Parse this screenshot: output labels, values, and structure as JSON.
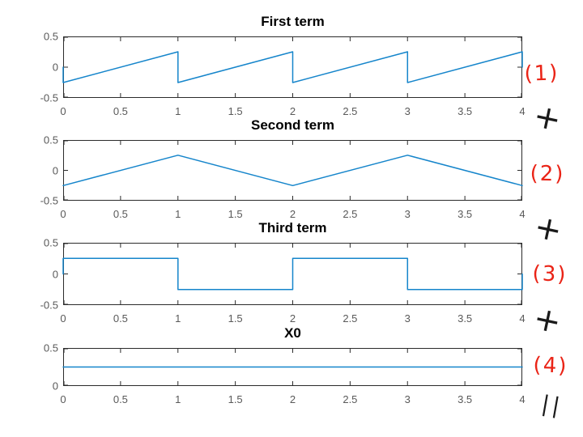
{
  "figure": {
    "kind": "matlab-style stacked subplots with handwritten annotations",
    "background": "#ffffff"
  },
  "colors": {
    "line": "#1585cb",
    "axis": "#2b2b2b",
    "tick_label": "#595959",
    "title": "#000000",
    "ink_red": "#ea2417",
    "ink_black": "#1a1a1a"
  },
  "chart_data": [
    {
      "type": "line",
      "title": "First term",
      "xlim": [
        0,
        4
      ],
      "ylim": [
        -0.5,
        0.5
      ],
      "x_ticks": [
        0,
        0.5,
        1,
        1.5,
        2,
        2.5,
        3,
        3.5,
        4
      ],
      "x_tick_labels": [
        "0",
        "0.5",
        "1",
        "1.5",
        "2",
        "2.5",
        "3",
        "3.5",
        "4"
      ],
      "y_ticks": [
        0.5,
        0,
        -0.5
      ],
      "y_tick_labels": [
        "0.5",
        "0",
        "-0.5"
      ],
      "grid": false,
      "legend": null,
      "points": [
        [
          0,
          0
        ],
        [
          0,
          -0.25
        ],
        [
          1,
          0.25
        ],
        [
          1,
          -0.25
        ],
        [
          2,
          0.25
        ],
        [
          2,
          -0.25
        ],
        [
          3,
          0.25
        ],
        [
          3,
          -0.25
        ],
        [
          4,
          0.25
        ],
        [
          4,
          0
        ]
      ]
    },
    {
      "type": "line",
      "title": "Second term",
      "xlim": [
        0,
        4
      ],
      "ylim": [
        -0.5,
        0.5
      ],
      "x_ticks": [
        0,
        0.5,
        1,
        1.5,
        2,
        2.5,
        3,
        3.5,
        4
      ],
      "x_tick_labels": [
        "0",
        "0.5",
        "1",
        "1.5",
        "2",
        "2.5",
        "3",
        "3.5",
        "4"
      ],
      "y_ticks": [
        0.5,
        0,
        -0.5
      ],
      "y_tick_labels": [
        "0.5",
        "0",
        "-0.5"
      ],
      "grid": false,
      "legend": null,
      "points": [
        [
          0,
          -0.25
        ],
        [
          1,
          0.25
        ],
        [
          2,
          -0.25
        ],
        [
          3,
          0.25
        ],
        [
          4,
          -0.25
        ]
      ]
    },
    {
      "type": "line",
      "title": "Third term",
      "xlim": [
        0,
        4
      ],
      "ylim": [
        -0.5,
        0.5
      ],
      "x_ticks": [
        0,
        0.5,
        1,
        1.5,
        2,
        2.5,
        3,
        3.5,
        4
      ],
      "x_tick_labels": [
        "0",
        "0.5",
        "1",
        "1.5",
        "2",
        "2.5",
        "3",
        "3.5",
        "4"
      ],
      "y_ticks": [
        0.5,
        0,
        -0.5
      ],
      "y_tick_labels": [
        "0.5",
        "0",
        "-0.5"
      ],
      "grid": false,
      "legend": null,
      "points": [
        [
          0,
          0
        ],
        [
          0,
          0.25
        ],
        [
          1,
          0.25
        ],
        [
          1,
          -0.25
        ],
        [
          2,
          -0.25
        ],
        [
          2,
          0.25
        ],
        [
          3,
          0.25
        ],
        [
          3,
          -0.25
        ],
        [
          4,
          -0.25
        ],
        [
          4,
          0
        ]
      ]
    },
    {
      "type": "line",
      "title": "X0",
      "xlim": [
        0,
        4
      ],
      "ylim": [
        0,
        0.5
      ],
      "x_ticks": [
        0,
        0.5,
        1,
        1.5,
        2,
        2.5,
        3,
        3.5,
        4
      ],
      "x_tick_labels": [
        "0",
        "0.5",
        "1",
        "1.5",
        "2",
        "2.5",
        "3",
        "3.5",
        "4"
      ],
      "y_ticks": [
        0.5,
        0
      ],
      "y_tick_labels": [
        "0.5",
        "0"
      ],
      "grid": false,
      "legend": null,
      "points": [
        [
          0,
          0.25
        ],
        [
          4,
          0.25
        ]
      ]
    }
  ],
  "annotations": {
    "right_margin": [
      {
        "text": "(1)",
        "ink": "red"
      },
      {
        "text": "+",
        "ink": "black"
      },
      {
        "text": "(2)",
        "ink": "red"
      },
      {
        "text": "+",
        "ink": "black"
      },
      {
        "text": "(3)",
        "ink": "red"
      },
      {
        "text": "+",
        "ink": "black"
      },
      {
        "text": "(4)",
        "ink": "red"
      },
      {
        "text": "||",
        "ink": "black"
      }
    ]
  }
}
